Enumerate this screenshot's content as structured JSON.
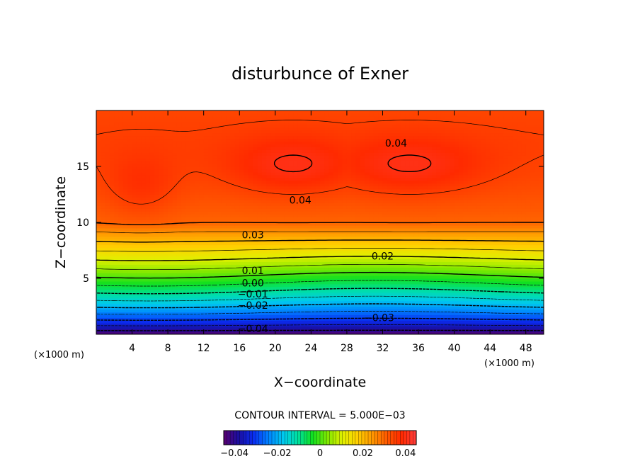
{
  "chart_data": {
    "type": "heatmap",
    "title": "disturbunce of Exner",
    "xlabel": "X−coordinate",
    "ylabel": "Z−coordinate",
    "x_unit": "(×1000 m)",
    "xlim": [
      0,
      50
    ],
    "ylim": [
      0,
      20
    ],
    "x_ticks": [
      4,
      8,
      12,
      16,
      20,
      24,
      28,
      32,
      36,
      40,
      44,
      48
    ],
    "x_tick_labels": [
      "4",
      "8",
      "12",
      "16",
      "20",
      "24",
      "28",
      "32",
      "36",
      "40",
      "44",
      "48"
    ],
    "y_ticks": [
      5,
      10,
      15
    ],
    "y_tick_labels": [
      "5",
      "10",
      "15"
    ],
    "contour_interval_text": "CONTOUR INTERVAL = 5.000E−03",
    "contour_interval": 0.005,
    "value_range": [
      -0.045,
      0.045
    ],
    "contour_labels": [
      {
        "text": "0.04",
        "x": 33.5,
        "y": 17.1
      },
      {
        "text": "0.04",
        "x": 22.8,
        "y": 12.0
      },
      {
        "text": "0.03",
        "x": 17.5,
        "y": 8.9
      },
      {
        "text": "0.02",
        "x": 32.0,
        "y": 7.0
      },
      {
        "text": "0.01",
        "x": 17.5,
        "y": 5.7
      },
      {
        "text": "0.00",
        "x": 17.5,
        "y": 4.6
      },
      {
        "text": "−0.01",
        "x": 17.5,
        "y": 3.6
      },
      {
        "text": "−0.02",
        "x": 17.5,
        "y": 2.6
      },
      {
        "text": "−0.03",
        "x": 31.6,
        "y": 1.5
      },
      {
        "text": "−0.04",
        "x": 17.5,
        "y": 0.5
      }
    ],
    "colorbar": {
      "tick_values": [
        -0.04,
        -0.02,
        0,
        0.02,
        0.04
      ],
      "tick_labels": [
        "−0.04",
        "−0.02",
        "0",
        "0.02",
        "0.04"
      ]
    },
    "grid": false,
    "colormap": [
      "#5a0070",
      "#1a0ea0",
      "#0a2cf0",
      "#0080ff",
      "#00c8f0",
      "#00e0a0",
      "#10e020",
      "#80e800",
      "#e0f000",
      "#ffd000",
      "#ff9a00",
      "#ff5a00",
      "#ff2a00",
      "#ff3d3d"
    ]
  }
}
